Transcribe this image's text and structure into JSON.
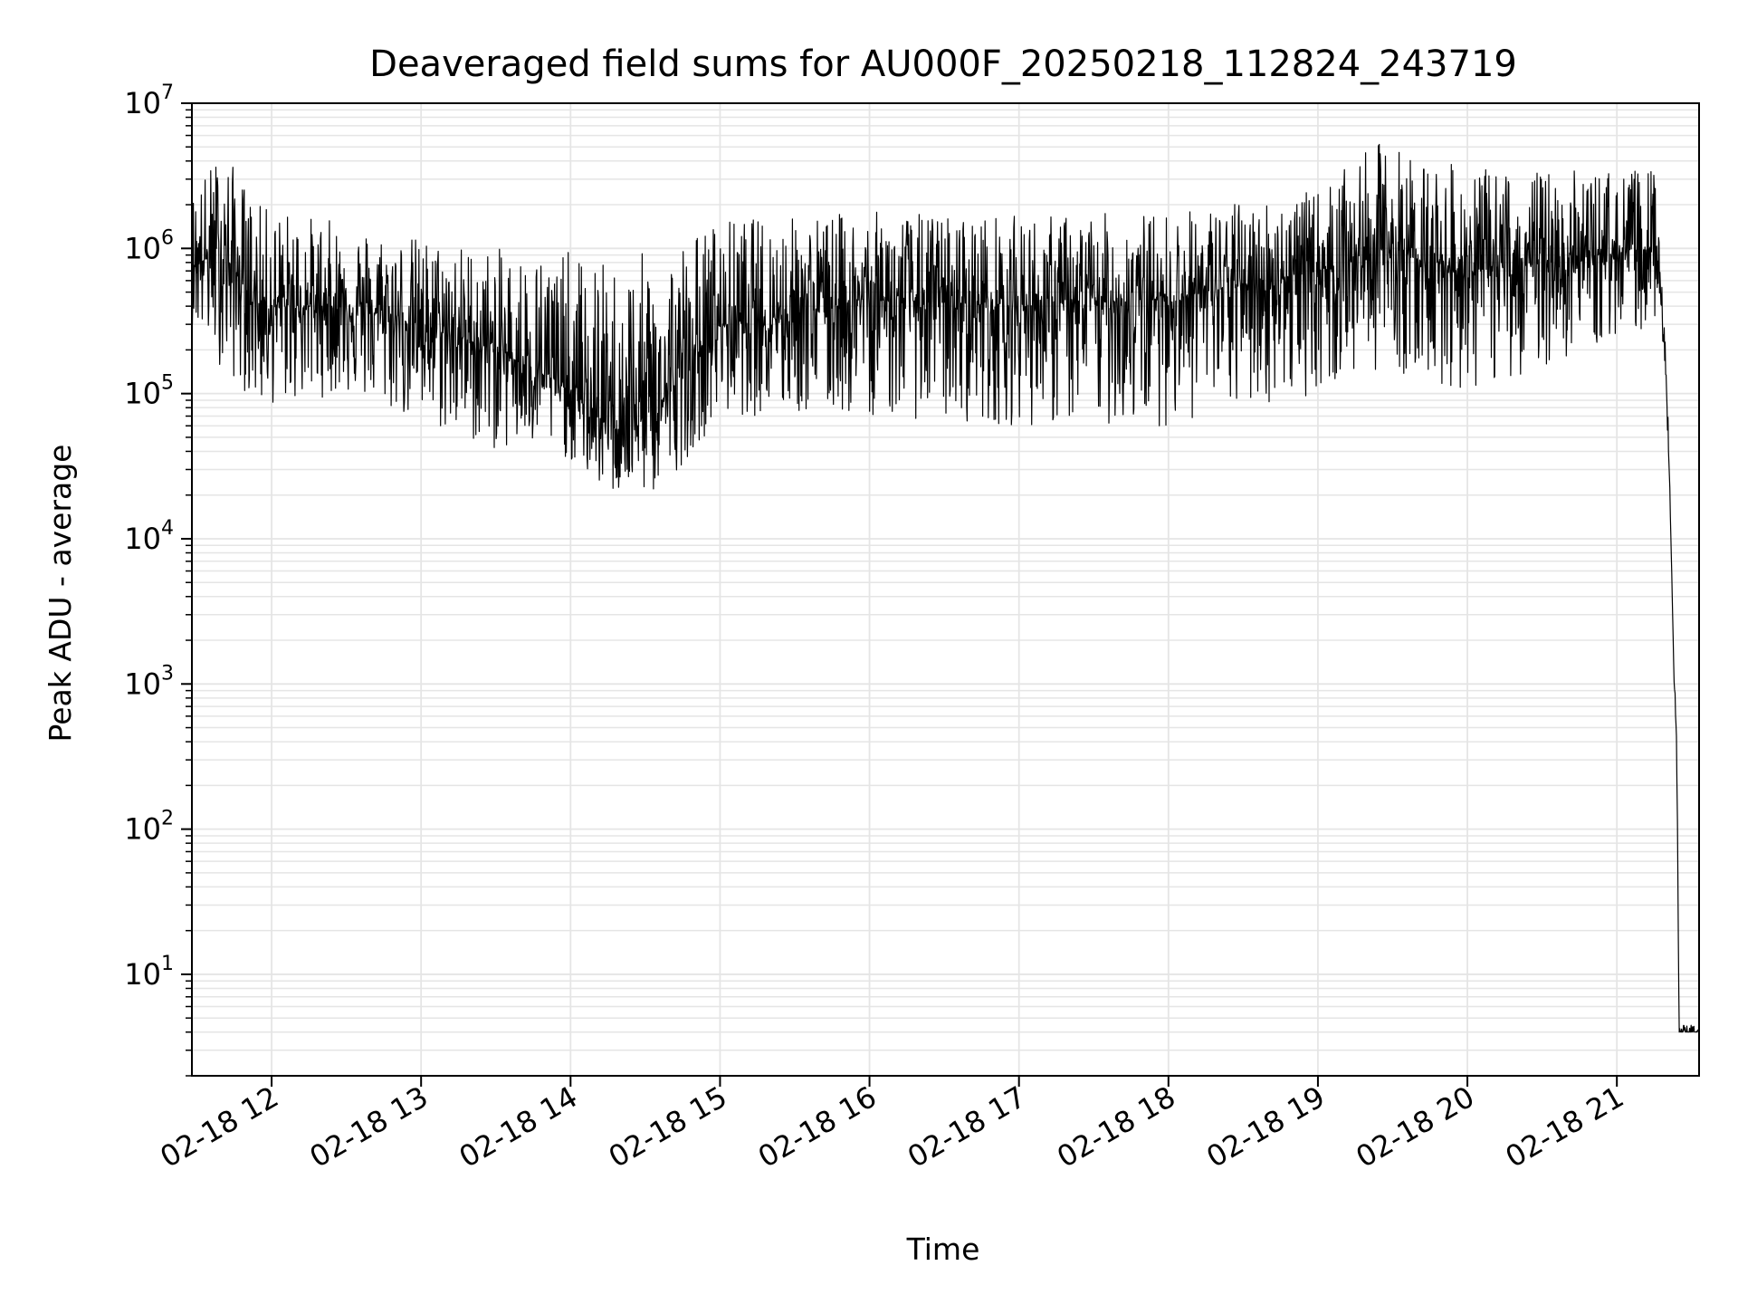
{
  "chart_data": {
    "type": "line",
    "title": "Deaveraged field sums for AU000F_20250218_112824_243719",
    "xlabel": "Time",
    "ylabel": "Peak ADU - average",
    "yscale": "log",
    "ylim": [
      2,
      10000000
    ],
    "xlim": [
      "2025-02-18 11:28",
      "2025-02-18 21:33"
    ],
    "x_ticks": [
      {
        "t": "2025-02-18 12:00",
        "label": "02-18 12"
      },
      {
        "t": "2025-02-18 13:00",
        "label": "02-18 13"
      },
      {
        "t": "2025-02-18 14:00",
        "label": "02-18 14"
      },
      {
        "t": "2025-02-18 15:00",
        "label": "02-18 15"
      },
      {
        "t": "2025-02-18 16:00",
        "label": "02-18 16"
      },
      {
        "t": "2025-02-18 17:00",
        "label": "02-18 17"
      },
      {
        "t": "2025-02-18 18:00",
        "label": "02-18 18"
      },
      {
        "t": "2025-02-18 19:00",
        "label": "02-18 19"
      },
      {
        "t": "2025-02-18 20:00",
        "label": "02-18 20"
      },
      {
        "t": "2025-02-18 21:00",
        "label": "02-18 21"
      }
    ],
    "y_ticks": [
      {
        "value": 10,
        "base": "10",
        "exp": "1"
      },
      {
        "value": 100,
        "base": "10",
        "exp": "2"
      },
      {
        "value": 1000,
        "base": "10",
        "exp": "3"
      },
      {
        "value": 10000,
        "base": "10",
        "exp": "4"
      },
      {
        "value": 100000,
        "base": "10",
        "exp": "5"
      },
      {
        "value": 1000000,
        "base": "10",
        "exp": "6"
      },
      {
        "value": 10000000,
        "base": "10",
        "exp": "7"
      }
    ],
    "grid": true,
    "line_color": "#000000",
    "grid_color": "#e5e5e5",
    "series": [
      {
        "envelope_points": [
          {
            "t": "2025-02-18 11:28",
            "median": 800000,
            "high": 2500000,
            "low": 300000
          },
          {
            "t": "2025-02-18 11:40",
            "median": 900000,
            "high": 5000000,
            "low": 150000
          },
          {
            "t": "2025-02-18 11:55",
            "median": 400000,
            "high": 2000000,
            "low": 80000
          },
          {
            "t": "2025-02-18 12:30",
            "median": 400000,
            "high": 1500000,
            "low": 100000
          },
          {
            "t": "2025-02-18 13:00",
            "median": 300000,
            "high": 1200000,
            "low": 60000
          },
          {
            "t": "2025-02-18 13:30",
            "median": 200000,
            "high": 1000000,
            "low": 40000
          },
          {
            "t": "2025-02-18 13:55",
            "median": 120000,
            "high": 1000000,
            "low": 40000
          },
          {
            "t": "2025-02-18 14:15",
            "median": 60000,
            "high": 800000,
            "low": 20000
          },
          {
            "t": "2025-02-18 14:35",
            "median": 80000,
            "high": 1000000,
            "low": 20000
          },
          {
            "t": "2025-02-18 15:00",
            "median": 300000,
            "high": 1600000,
            "low": 70000
          },
          {
            "t": "2025-02-18 16:00",
            "median": 450000,
            "high": 1800000,
            "low": 70000
          },
          {
            "t": "2025-02-18 17:00",
            "median": 400000,
            "high": 1700000,
            "low": 60000
          },
          {
            "t": "2025-02-18 18:00",
            "median": 450000,
            "high": 1800000,
            "low": 60000
          },
          {
            "t": "2025-02-18 19:00",
            "median": 700000,
            "high": 2500000,
            "low": 100000
          },
          {
            "t": "2025-02-18 19:25",
            "median": 1000000,
            "high": 5500000,
            "low": 150000
          },
          {
            "t": "2025-02-18 20:00",
            "median": 700000,
            "high": 3500000,
            "low": 100000
          },
          {
            "t": "2025-02-18 20:30",
            "median": 800000,
            "high": 3500000,
            "low": 150000
          },
          {
            "t": "2025-02-18 21:15",
            "median": 1000000,
            "high": 3500000,
            "low": 300000
          },
          {
            "t": "2025-02-18 21:18",
            "median": 400000,
            "high": 600000,
            "low": 300000
          },
          {
            "t": "2025-02-18 21:20",
            "median": 100000,
            "high": 150000,
            "low": 80000
          },
          {
            "t": "2025-02-18 21:21",
            "median": 30000,
            "high": 40000,
            "low": 20000
          },
          {
            "t": "2025-02-18 21:22",
            "median": 6000,
            "high": 8000,
            "low": 5000
          },
          {
            "t": "2025-02-18 21:23",
            "median": 1000,
            "high": 1200,
            "low": 800
          },
          {
            "t": "2025-02-18 21:24",
            "median": 400,
            "high": 500,
            "low": 300
          },
          {
            "t": "2025-02-18 21:25",
            "median": 4,
            "high": 4.5,
            "low": 4
          },
          {
            "t": "2025-02-18 21:33",
            "median": 4,
            "high": 4.5,
            "low": 4
          }
        ]
      }
    ]
  }
}
